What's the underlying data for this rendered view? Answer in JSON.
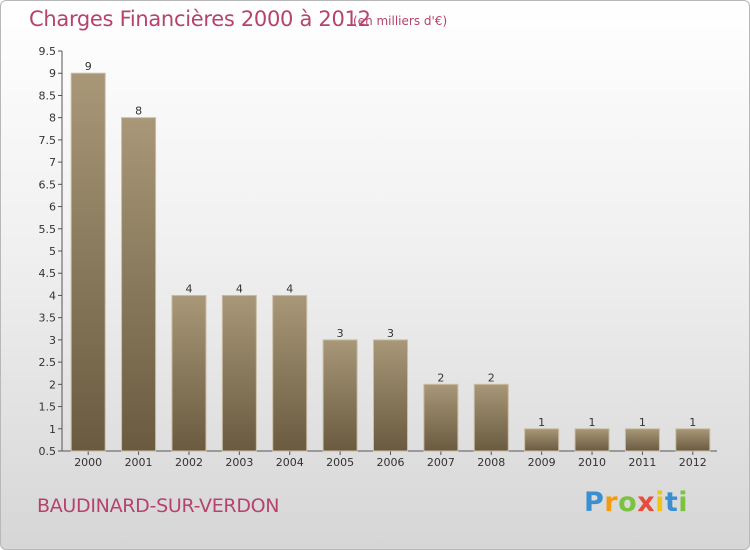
{
  "chart_data": {
    "type": "bar",
    "title": "Charges Financières 2000 à 2012",
    "subtitle": "(en milliers d'€)",
    "categories": [
      "2000",
      "2001",
      "2002",
      "2003",
      "2004",
      "2005",
      "2006",
      "2007",
      "2008",
      "2009",
      "2010",
      "2011",
      "2012"
    ],
    "values": [
      9,
      8,
      4,
      4,
      4,
      3,
      3,
      2,
      2,
      1,
      1,
      1,
      1
    ],
    "data_labels": [
      "9",
      "8",
      "4",
      "4",
      "4",
      "3",
      "3",
      "2",
      "2",
      "1",
      "1",
      "1",
      "1"
    ],
    "ylim": [
      0.5,
      9.5
    ],
    "yticks": [
      0.5,
      1,
      1.5,
      2,
      2.5,
      3,
      3.5,
      4,
      4.5,
      5,
      5.5,
      6,
      6.5,
      7,
      7.5,
      8,
      8.5,
      9,
      9.5
    ],
    "ytick_labels": [
      "0.5",
      "1",
      "1.5",
      "2",
      "2.5",
      "3",
      "3.5",
      "4",
      "4.5",
      "5",
      "5.5",
      "6",
      "6.5",
      "7",
      "7.5",
      "8",
      "8.5",
      "9",
      "9.5"
    ],
    "grid": false,
    "bar_color": "#8b7b61"
  },
  "footer": {
    "commune": "BAUDINARD-SUR-VERDON",
    "brand_letters": [
      {
        "ch": "P",
        "color": "#3a8fd1"
      },
      {
        "ch": "r",
        "color": "#f39c12"
      },
      {
        "ch": "o",
        "color": "#7cc242"
      },
      {
        "ch": "x",
        "color": "#e74c3c"
      },
      {
        "ch": "i",
        "color": "#f1c40f"
      },
      {
        "ch": "t",
        "color": "#3a8fd1"
      },
      {
        "ch": "i",
        "color": "#7cc242"
      }
    ]
  },
  "colors": {
    "title": "#b5436e",
    "bar_top": "#a89878",
    "bar_bottom": "#6a5a40"
  }
}
